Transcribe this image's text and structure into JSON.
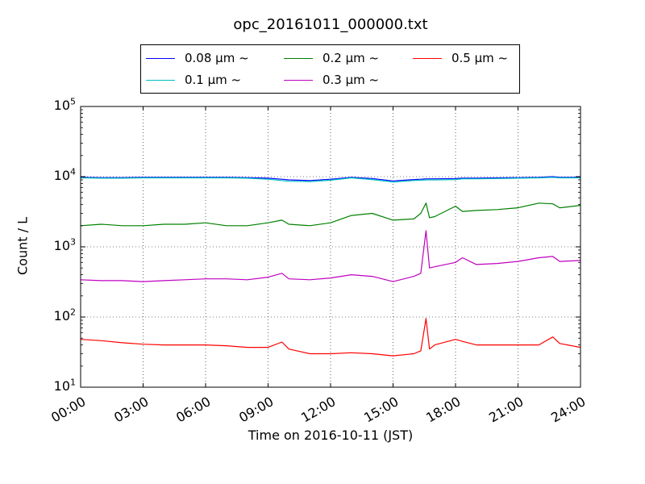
{
  "chart_data": {
    "type": "line",
    "title": "opc_20161011_000000.txt",
    "xlabel": "Time on 2016-10-11 (JST)",
    "ylabel": "Count / L",
    "yscale": "log",
    "ylim": [
      10,
      100000
    ],
    "xlim_hours": [
      0,
      24
    ],
    "grid": true,
    "legend_position": "top-center",
    "x_tick_labels": [
      "00:00",
      "03:00",
      "06:00",
      "09:00",
      "12:00",
      "15:00",
      "18:00",
      "21:00",
      "24:00"
    ],
    "y_tick_labels": [
      {
        "base": "10",
        "exp": "1"
      },
      {
        "base": "10",
        "exp": "2"
      },
      {
        "base": "10",
        "exp": "3"
      },
      {
        "base": "10",
        "exp": "4"
      },
      {
        "base": "10",
        "exp": "5"
      }
    ],
    "x": [
      "00:00",
      "01:00",
      "02:00",
      "03:00",
      "04:00",
      "05:00",
      "06:00",
      "07:00",
      "08:00",
      "09:00",
      "09:40",
      "10:00",
      "11:00",
      "12:00",
      "13:00",
      "14:00",
      "15:00",
      "16:00",
      "16:20",
      "16:35",
      "16:45",
      "17:00",
      "18:00",
      "18:20",
      "19:00",
      "20:00",
      "21:00",
      "22:00",
      "22:40",
      "23:00",
      "24:00"
    ],
    "series": [
      {
        "name": "0.08 μm ~",
        "color": "#0000ff",
        "values": [
          9800,
          9700,
          9700,
          9800,
          9800,
          9800,
          9800,
          9800,
          9700,
          9500,
          9200,
          9000,
          8800,
          9200,
          9800,
          9400,
          8700,
          9100,
          9200,
          9300,
          9300,
          9300,
          9400,
          9500,
          9500,
          9600,
          9700,
          9800,
          10000,
          9800,
          9800
        ]
      },
      {
        "name": "0.1 μm ~",
        "color": "#00bfbf",
        "values": [
          9600,
          9500,
          9500,
          9600,
          9600,
          9600,
          9600,
          9600,
          9500,
          9200,
          8800,
          8600,
          8500,
          8900,
          9600,
          9100,
          8400,
          8800,
          8900,
          9000,
          9000,
          9000,
          9100,
          9300,
          9300,
          9400,
          9500,
          9600,
          9800,
          9600,
          9600
        ]
      },
      {
        "name": "0.2 μm ~",
        "color": "#008000",
        "values": [
          2000,
          2100,
          2000,
          2000,
          2100,
          2100,
          2200,
          2000,
          2000,
          2200,
          2400,
          2100,
          2000,
          2200,
          2800,
          3000,
          2400,
          2500,
          3000,
          4200,
          2600,
          2700,
          3800,
          3200,
          3300,
          3400,
          3600,
          4200,
          4100,
          3600,
          3900
        ]
      },
      {
        "name": "0.3 μm ~",
        "color": "#bf00bf",
        "values": [
          340,
          330,
          330,
          320,
          330,
          340,
          350,
          350,
          340,
          370,
          420,
          350,
          340,
          360,
          400,
          380,
          320,
          380,
          420,
          1700,
          500,
          520,
          600,
          700,
          560,
          580,
          620,
          700,
          730,
          620,
          640
        ]
      },
      {
        "name": "0.5 μm ~",
        "color": "#ff0000",
        "values": [
          48,
          46,
          43,
          41,
          40,
          40,
          40,
          39,
          37,
          37,
          44,
          35,
          30,
          30,
          31,
          30,
          28,
          30,
          33,
          95,
          35,
          40,
          48,
          45,
          40,
          40,
          40,
          40,
          52,
          42,
          37
        ]
      }
    ]
  }
}
